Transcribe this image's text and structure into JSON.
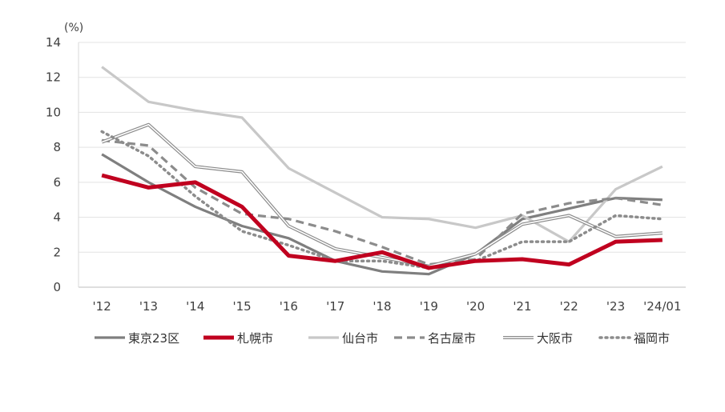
{
  "chart_data": {
    "type": "line",
    "unit_label": "(%)",
    "categories": [
      "'12",
      "'13",
      "'14",
      "'15",
      "'16",
      "'17",
      "'18",
      "'19",
      "'20",
      "'21",
      "'22",
      "'23",
      "'24/01"
    ],
    "ylim": [
      0,
      14
    ],
    "yticks": [
      0,
      2,
      4,
      6,
      8,
      10,
      12,
      14
    ],
    "grid": true,
    "legend_position": "bottom",
    "series": [
      {
        "name": "東京23区",
        "color": "#7f7f7f",
        "style": "solid-medium",
        "values": [
          7.6,
          6.0,
          4.6,
          3.5,
          2.8,
          1.5,
          0.9,
          0.75,
          1.9,
          3.9,
          4.5,
          5.1,
          5.0
        ]
      },
      {
        "name": "札幌市",
        "color": "#c0001f",
        "style": "solid-thick",
        "values": [
          6.4,
          5.7,
          6.0,
          4.6,
          1.8,
          1.5,
          2.0,
          1.1,
          1.5,
          1.6,
          1.3,
          2.6,
          2.7
        ]
      },
      {
        "name": "仙台市",
        "color": "#c8c8c8",
        "style": "solid-medium",
        "values": [
          12.6,
          10.6,
          10.1,
          9.7,
          6.8,
          5.4,
          4.0,
          3.9,
          3.4,
          4.1,
          2.6,
          5.6,
          6.9
        ]
      },
      {
        "name": "名古屋市",
        "color": "#8c8c8c",
        "style": "dashed",
        "values": [
          8.4,
          8.1,
          5.7,
          4.2,
          3.9,
          3.2,
          2.3,
          1.3,
          1.6,
          4.2,
          4.8,
          5.1,
          4.7
        ]
      },
      {
        "name": "大阪市",
        "color": "#8c8c8c",
        "style": "double",
        "values": [
          8.3,
          9.3,
          6.9,
          6.6,
          3.5,
          2.2,
          1.7,
          1.2,
          1.9,
          3.6,
          4.1,
          2.9,
          3.1
        ]
      },
      {
        "name": "福岡市",
        "color": "#8c8c8c",
        "style": "dotted",
        "values": [
          8.9,
          7.5,
          5.2,
          3.2,
          2.4,
          1.5,
          1.5,
          1.1,
          1.5,
          2.6,
          2.6,
          4.1,
          3.9
        ]
      }
    ]
  }
}
